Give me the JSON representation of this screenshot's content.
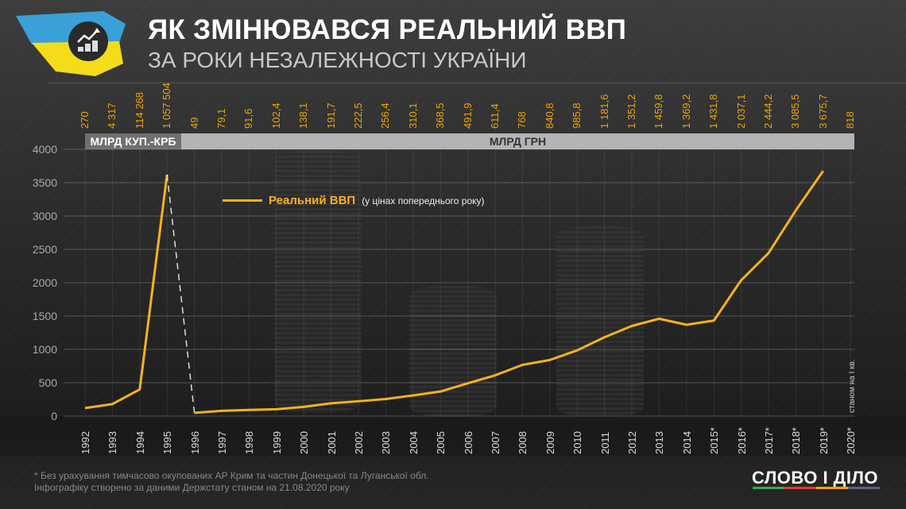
{
  "header": {
    "title": "ЯК ЗМІНЮВАВСЯ РЕАЛЬНИЙ ВВП",
    "subtitle": "ЗА РОКИ НЕЗАЛЕЖНОСТІ УКРАЇНИ",
    "logo_icon": "growth-chart-coins-icon"
  },
  "bands": {
    "left": "МЛРД КУП.-КРБ",
    "right": "МЛРД ГРН"
  },
  "legend": {
    "name": "Реальний ВВП",
    "note": "(у цінах попереднього року)"
  },
  "note_2020": "станом на І кв.",
  "footer": {
    "line1": "* Без урахування тимчасово окупованих АР Крим та частин Донецької та Луганської обл.",
    "line2": "Інфографіку створено за даними Держстату станом на 21.08.2020 року",
    "brand": "СЛОВО І ДІЛО",
    "brand_colors": [
      "#3aa94a",
      "#e23b2a",
      "#f0a500",
      "#5b6478"
    ]
  },
  "colors": {
    "line": "#f5b21e",
    "value_labels": "#f0a500",
    "background": "#2b2b2b"
  },
  "chart_data": {
    "type": "line",
    "title": "Як змінювався реальний ВВП за роки незалежності України",
    "categories": [
      "1992",
      "1993",
      "1994",
      "1995",
      "1996",
      "1997",
      "1998",
      "1999",
      "2000",
      "2001",
      "2002",
      "2003",
      "2004",
      "2005",
      "2006",
      "2007",
      "2008",
      "2009",
      "2010",
      "2011",
      "2012",
      "2013",
      "2014",
      "2015*",
      "2016*",
      "2017*",
      "2018*",
      "2019*",
      "2020*"
    ],
    "value_labels": [
      "270",
      "4 317",
      "114 268",
      "1 057 504",
      "49",
      "79,1",
      "91,6",
      "102,4",
      "138,1",
      "191,7",
      "222,5",
      "256,4",
      "310,1",
      "368,5",
      "491,9",
      "611,4",
      "768",
      "840,8",
      "985,8",
      "1 181,6",
      "1 351,2",
      "1 459,8",
      "1 369,2",
      "1 431,8",
      "2 037,1",
      "2 444,2",
      "3 085,5",
      "3 675,7",
      "818"
    ],
    "units": [
      "млрд куп.-крб",
      "млрд куп.-крб",
      "млрд куп.-крб",
      "млрд куп.-крб",
      "млрд грн",
      "млрд грн",
      "млрд грн",
      "млрд грн",
      "млрд грн",
      "млрд грн",
      "млрд грн",
      "млрд грн",
      "млрд грн",
      "млрд грн",
      "млрд грн",
      "млрд грн",
      "млрд грн",
      "млрд грн",
      "млрд грн",
      "млрд грн",
      "млрд грн",
      "млрд грн",
      "млрд грн",
      "млрд грн",
      "млрд грн",
      "млрд грн",
      "млрд грн",
      "млрд грн",
      "млрд грн"
    ],
    "series": [
      {
        "name": "Реальний ВВП (у цінах попереднього року)",
        "segment": "1992-1995 (plotted scale)",
        "values": [
          120,
          180,
          400,
          3620
        ]
      },
      {
        "name": "Реальний ВВП (у цінах попереднього року)",
        "segment": "1996-2019",
        "values": [
          49,
          79.1,
          91.6,
          102.4,
          138.1,
          191.7,
          222.5,
          256.4,
          310.1,
          368.5,
          491.9,
          611.4,
          768,
          840.8,
          985.8,
          1181.6,
          1351.2,
          1459.8,
          1369.2,
          1431.8,
          2037.1,
          2444.2,
          3085.5,
          3675.7
        ]
      }
    ],
    "connector": "dashed line from 1995 to 1996 (currency change)",
    "yticks": [
      0,
      500,
      1000,
      1500,
      2000,
      2500,
      3000,
      3500,
      4000
    ],
    "ylim": [
      0,
      4000
    ],
    "xlabel": "",
    "ylabel": "",
    "grid": true,
    "legend_position": "inside top-left"
  }
}
